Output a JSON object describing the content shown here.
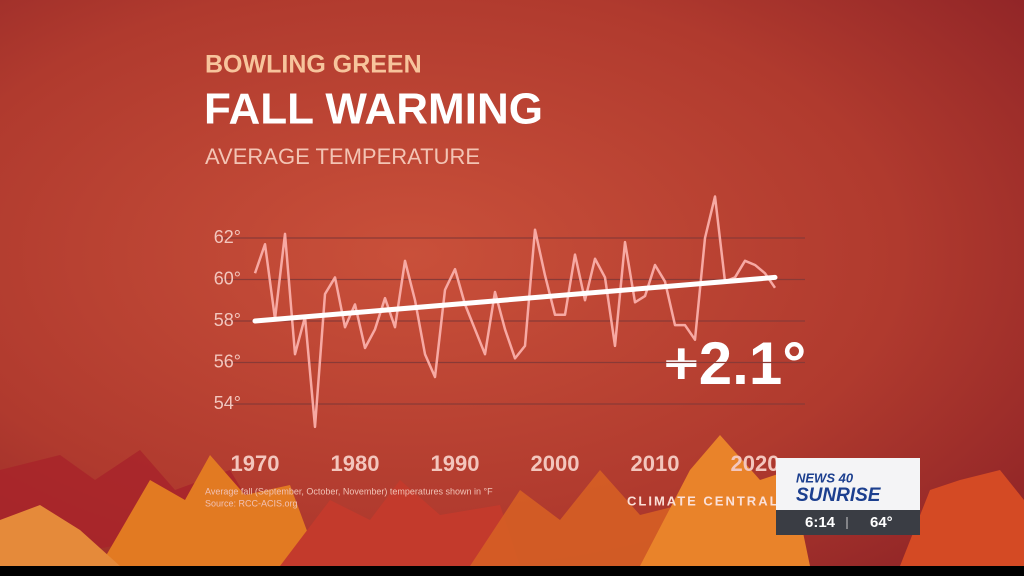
{
  "chart_data": {
    "type": "line",
    "supertitle": "BOWLING GREEN",
    "title": "FALL WARMING",
    "subtitle": "AVERAGE TEMPERATURE",
    "x": [
      1970,
      1971,
      1972,
      1973,
      1974,
      1975,
      1976,
      1977,
      1978,
      1979,
      1980,
      1981,
      1982,
      1983,
      1984,
      1985,
      1986,
      1987,
      1988,
      1989,
      1990,
      1991,
      1992,
      1993,
      1994,
      1995,
      1996,
      1997,
      1998,
      1999,
      2000,
      2001,
      2002,
      2003,
      2004,
      2005,
      2006,
      2007,
      2008,
      2009,
      2010,
      2011,
      2012,
      2013,
      2014,
      2015,
      2016,
      2017,
      2018,
      2019,
      2020,
      2021,
      2022
    ],
    "series": [
      {
        "color": "#f7a9a3",
        "values": [
          60.3,
          61.7,
          58.1,
          62.2,
          56.4,
          58.2,
          52.9,
          59.3,
          60.1,
          57.7,
          58.8,
          56.7,
          57.6,
          59.1,
          57.7,
          60.9,
          59.0,
          56.4,
          55.3,
          59.5,
          60.5,
          58.8,
          57.6,
          56.4,
          59.4,
          57.6,
          56.2,
          56.8,
          62.4,
          60.2,
          58.3,
          58.3,
          61.2,
          59.0,
          61.0,
          60.1,
          56.8,
          61.8,
          58.9,
          59.2,
          60.7,
          59.9,
          57.8,
          57.8,
          57.1,
          62.0,
          64.0,
          59.9,
          60.1,
          60.9,
          60.7,
          60.3,
          59.6
        ]
      }
    ],
    "trend": {
      "color": "#ffffff",
      "x": [
        1970,
        2022
      ],
      "values": [
        58.0,
        60.1
      ]
    },
    "annotation": "+2.1°",
    "xlim": [
      1970,
      2022
    ],
    "xticks": [
      1970,
      1980,
      1990,
      2000,
      2010,
      2020
    ],
    "ylim": [
      52,
      65
    ],
    "yticks": [
      {
        "value": 54,
        "label": "54°"
      },
      {
        "value": 56,
        "label": "56°"
      },
      {
        "value": 58,
        "label": "58°"
      },
      {
        "value": 60,
        "label": "60°"
      },
      {
        "value": 62,
        "label": "62°"
      }
    ],
    "grid": true,
    "note": "Average fall (September, October, November) temperatures shown in °F",
    "source": "Source: RCC-ACIS.org",
    "brand": "CLIMATE CENTRAL"
  },
  "overlay": {
    "station": "NEWS 40",
    "show": "SUNRISE",
    "time": "6:14",
    "temperature": "64°"
  }
}
